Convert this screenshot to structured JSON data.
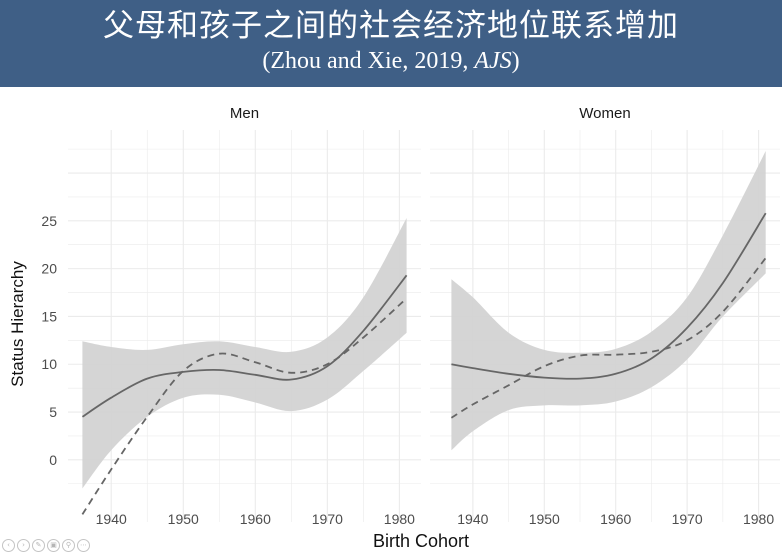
{
  "title": {
    "main": "父母和孩子之间的社会经济地位联系增加",
    "citation_prefix": "(Zhou and Xie, 2019, ",
    "citation_journal": "AJS",
    "citation_suffix": ")"
  },
  "chart_data": {
    "type": "line",
    "xlabel": "Birth Cohort",
    "ylabel": "Status Hierarchy",
    "x_ticks": [
      1940,
      1950,
      1960,
      1970,
      1980
    ],
    "y_ticks": [
      0,
      5,
      10,
      15,
      20,
      25
    ],
    "xlim": [
      1934,
      1983
    ],
    "ylim": [
      -6.5,
      34.5
    ],
    "grid": true,
    "legend": "none",
    "colors": {
      "solid_line": "#666666",
      "dashed_line": "#666666",
      "confidence_band": "#d3d3d3",
      "grid": "#ebebeb",
      "title_banner": "#3f5f86"
    },
    "panels": [
      {
        "name": "Men",
        "series": [
          {
            "style": "solid",
            "x": [
              1936,
              1940,
              1945,
              1950,
              1955,
              1960,
              1965,
              1970,
              1975,
              1981
            ],
            "y": [
              4.5,
              6.5,
              8.5,
              9.2,
              9.4,
              8.9,
              8.4,
              9.8,
              13.5,
              19.3
            ]
          },
          {
            "style": "dashed",
            "x": [
              1936,
              1940,
              1945,
              1950,
              1955,
              1960,
              1965,
              1970,
              1975,
              1981
            ],
            "y": [
              -5.7,
              -1.0,
              4.5,
              9.3,
              11.1,
              10.2,
              9.1,
              10.0,
              12.8,
              16.9
            ]
          },
          {
            "style": "band",
            "x": [
              1936,
              1940,
              1945,
              1950,
              1955,
              1960,
              1965,
              1970,
              1975,
              1981
            ],
            "lower": [
              -3.0,
              1.0,
              4.5,
              6.5,
              6.8,
              6.0,
              5.1,
              6.3,
              9.3,
              13.3
            ],
            "upper": [
              12.4,
              11.8,
              11.5,
              12.1,
              12.4,
              11.8,
              11.3,
              12.8,
              17.0,
              25.3
            ]
          }
        ]
      },
      {
        "name": "Women",
        "series": [
          {
            "style": "solid",
            "x": [
              1937,
              1940,
              1945,
              1950,
              1955,
              1960,
              1965,
              1970,
              1975,
              1981
            ],
            "y": [
              10.0,
              9.6,
              9.0,
              8.6,
              8.5,
              9.0,
              10.6,
              13.8,
              18.5,
              25.8
            ]
          },
          {
            "style": "dashed",
            "x": [
              1937,
              1940,
              1945,
              1950,
              1955,
              1960,
              1965,
              1970,
              1975,
              1981
            ],
            "y": [
              4.4,
              5.8,
              7.8,
              9.8,
              10.9,
              11.0,
              11.3,
              12.5,
              15.5,
              21.1
            ]
          },
          {
            "style": "band",
            "x": [
              1937,
              1940,
              1945,
              1950,
              1955,
              1960,
              1965,
              1970,
              1975,
              1981
            ],
            "lower": [
              1.0,
              3.0,
              5.2,
              5.7,
              5.7,
              6.1,
              7.6,
              10.5,
              15.0,
              19.5
            ],
            "upper": [
              18.9,
              17.0,
              13.3,
              11.5,
              11.2,
              11.6,
              13.4,
              17.0,
              23.5,
              32.3
            ]
          }
        ]
      }
    ]
  }
}
